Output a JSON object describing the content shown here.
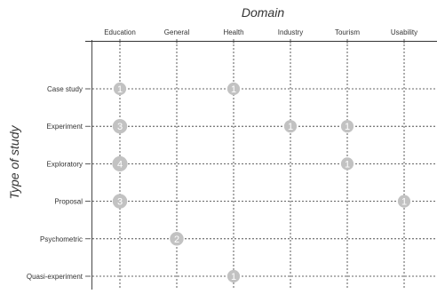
{
  "chart_data": {
    "type": "scatter",
    "title": "",
    "xlabel": "Domain",
    "ylabel": "Type of study",
    "x_categories": [
      "Education",
      "General",
      "Health",
      "Industry",
      "Tourism",
      "Usability"
    ],
    "y_categories": [
      "Case study",
      "Experiment",
      "Exploratory",
      "Proposal",
      "Psychometric",
      "Quasi-experiment"
    ],
    "x_axis_position": "top",
    "grid": true,
    "points": [
      {
        "x": "Education",
        "y": "Case study",
        "count": 1
      },
      {
        "x": "Health",
        "y": "Case study",
        "count": 1
      },
      {
        "x": "Education",
        "y": "Experiment",
        "count": 3
      },
      {
        "x": "Industry",
        "y": "Experiment",
        "count": 1
      },
      {
        "x": "Tourism",
        "y": "Experiment",
        "count": 1
      },
      {
        "x": "Education",
        "y": "Exploratory",
        "count": 4
      },
      {
        "x": "Tourism",
        "y": "Exploratory",
        "count": 1
      },
      {
        "x": "Education",
        "y": "Proposal",
        "count": 3
      },
      {
        "x": "Usability",
        "y": "Proposal",
        "count": 1
      },
      {
        "x": "General",
        "y": "Psychometric",
        "count": 2
      },
      {
        "x": "Health",
        "y": "Quasi-experiment",
        "count": 1
      }
    ],
    "colors": {
      "bubble": "#c2c2c2",
      "bubble_text": "#ffffff",
      "lines": "#333333"
    }
  }
}
